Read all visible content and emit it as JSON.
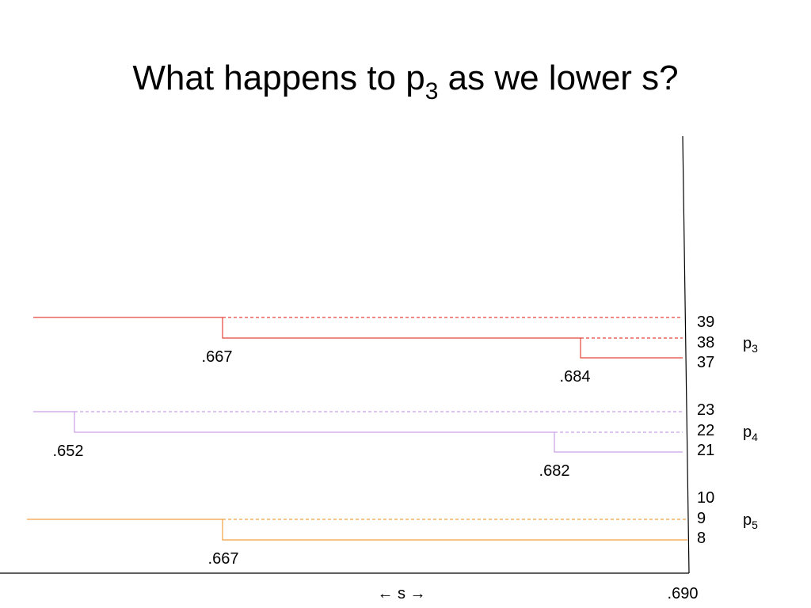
{
  "title": {
    "text": "What happens to p",
    "sub": "3",
    "rest": " as we lower s?"
  },
  "leaves": [
    "39",
    "38",
    "37",
    "23",
    "22",
    "21",
    "10",
    "9",
    "8"
  ],
  "groups": [
    {
      "base": "p",
      "sub": "3"
    },
    {
      "base": "p",
      "sub": "4"
    },
    {
      "base": "p",
      "sub": "5"
    }
  ],
  "merges": [
    ".667",
    ".684",
    ".652",
    ".682",
    ".667"
  ],
  "axis": {
    "label": "← s →",
    "end": ".690"
  }
}
